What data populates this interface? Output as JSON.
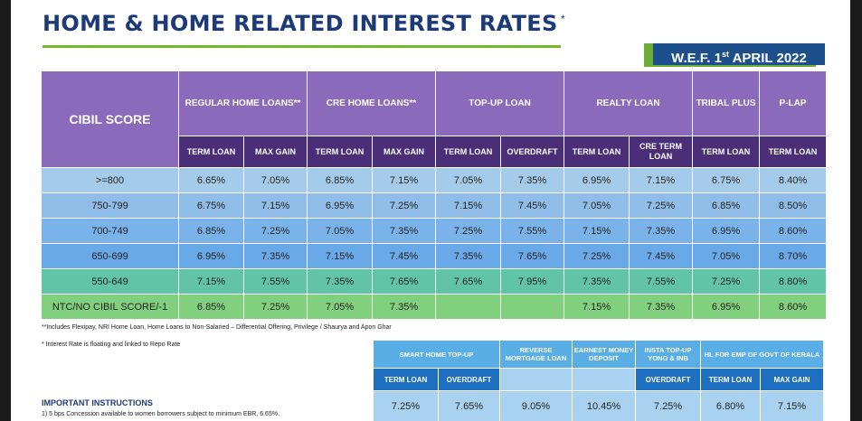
{
  "title": "HOME & HOME RELATED INTEREST RATES",
  "title_mark": "*",
  "wef": {
    "prefix": "W.E.F. 1",
    "sup": "st",
    "suffix": " APRIL 2022"
  },
  "main": {
    "cibil_header": "CIBIL SCORE",
    "groups": [
      "REGULAR HOME LOANS**",
      "CRE HOME LOANS**",
      "TOP-UP LOAN",
      "REALTY LOAN",
      "TRIBAL PLUS",
      "P-LAP"
    ],
    "subheaders": [
      "TERM LOAN",
      "MAX GAIN",
      "TERM LOAN",
      "MAX GAIN",
      "TERM LOAN",
      "OVERDRAFT",
      "TERM LOAN",
      "CRE TERM LOAN",
      "TERM LOAN",
      "TERM LOAN"
    ],
    "rows": [
      {
        "score": ">=800",
        "values": [
          "6.65%",
          "7.05%",
          "6.85%",
          "7.15%",
          "7.05%",
          "7.35%",
          "6.95%",
          "7.15%",
          "6.75%",
          "8.40%"
        ]
      },
      {
        "score": "750-799",
        "values": [
          "6.75%",
          "7.15%",
          "6.95%",
          "7.25%",
          "7.15%",
          "7.45%",
          "7.05%",
          "7.25%",
          "6.85%",
          "8.50%"
        ]
      },
      {
        "score": "700-749",
        "values": [
          "6.85%",
          "7.25%",
          "7.05%",
          "7.35%",
          "7.25%",
          "7.55%",
          "7.15%",
          "7.35%",
          "6.95%",
          "8.60%"
        ]
      },
      {
        "score": "650-699",
        "values": [
          "6.95%",
          "7.35%",
          "7.15%",
          "7.45%",
          "7.35%",
          "7.65%",
          "7.25%",
          "7.45%",
          "7.05%",
          "8.70%"
        ]
      },
      {
        "score": "550-649",
        "values": [
          "7.15%",
          "7.55%",
          "7.35%",
          "7.65%",
          "7.65%",
          "7.95%",
          "7.35%",
          "7.55%",
          "7.25%",
          "8.80%"
        ]
      },
      {
        "score": "NTC/NO CIBIL SCORE/-1",
        "values": [
          "6.85%",
          "7.25%",
          "7.05%",
          "7.35%",
          "",
          "",
          "7.15%",
          "7.35%",
          "6.95%",
          "8.60%"
        ]
      }
    ]
  },
  "notes": {
    "includes": "**Includes Flexipay, NRI Home Loan, Home Loans to Non-Salaried – Differential Offering, Privilege / Shaurya and Apon Ghar",
    "floating": "* Interest Rate is floating and linked to Repo Rate"
  },
  "instructions": {
    "heading": "IMPORTANT INSTRUCTIONS",
    "line1": "1) 5 bps Concession available to women borrowers subject to minimum EBR, 6.65%."
  },
  "lower": {
    "groups": [
      "SMART HOME TOP-UP",
      "REVERSE MORTGAGE LOAN",
      "EARNEST MONEY DEPOSIT",
      "INSTA TOP-UP YONO & INB",
      "HL FOR EMP OF GOVT OF KERALA"
    ],
    "subheaders": [
      "TERM LOAN",
      "OVERDRAFT",
      "OVERDRAFT",
      "TERM LOAN",
      "MAX GAIN"
    ],
    "values": [
      "7.25%",
      "7.65%",
      "9.05%",
      "10.45%",
      "7.25%",
      "6.80%",
      "7.15%"
    ]
  }
}
